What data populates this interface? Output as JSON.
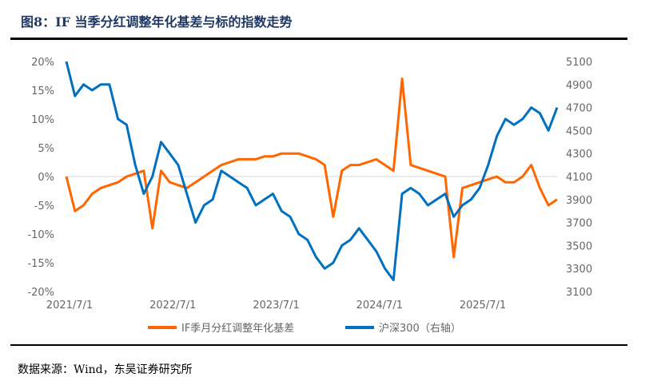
{
  "title": "图8：IF 当季分红调整年化基差与标的指数走势",
  "source": "数据来源：Wind，东吴证券研究所",
  "chart_data": {
    "type": "line",
    "title": "图8：IF 当季分红调整年化基差与标的指数走势",
    "x_tick_labels": [
      "2021/7/1",
      "2022/7/1",
      "2023/7/1",
      "2024/7/1",
      "2025/7/1"
    ],
    "y_left": {
      "range": [
        -20,
        20
      ],
      "unit": "%",
      "ticks": [
        "20%",
        "15%",
        "10%",
        "5%",
        "0%",
        "-5%",
        "-10%",
        "-15%",
        "-20%"
      ]
    },
    "y_right": {
      "range": [
        3100,
        5100
      ],
      "ticks": [
        "5100",
        "4900",
        "4700",
        "4500",
        "4300",
        "4100",
        "3900",
        "3700",
        "3500",
        "3300",
        "3100"
      ]
    },
    "grid": "zero-line only",
    "legend_position": "bottom",
    "dates": [
      "2021/7",
      "2021/8",
      "2021/9",
      "2021/10",
      "2021/11",
      "2021/12",
      "2022/1",
      "2022/2",
      "2022/3",
      "2022/4",
      "2022/5",
      "2022/6",
      "2022/7",
      "2022/8",
      "2022/9",
      "2022/10",
      "2022/11",
      "2022/12",
      "2023/1",
      "2023/2",
      "2023/3",
      "2023/4",
      "2023/5",
      "2023/6",
      "2023/7",
      "2023/8",
      "2023/9",
      "2023/10",
      "2023/11",
      "2023/12",
      "2024/1",
      "2024/2",
      "2024/3",
      "2024/4",
      "2024/5",
      "2024/6",
      "2024/7",
      "2024/8",
      "2024/9",
      "2024/10",
      "2024/11",
      "2024/12",
      "2025/1",
      "2025/2",
      "2025/3",
      "2025/4",
      "2025/5",
      "2025/6",
      "2025/7",
      "2025/8",
      "2025/9",
      "2025/10",
      "2025/11",
      "2025/12",
      "2026/1",
      "2026/2",
      "2026/3",
      "2026/4"
    ],
    "series": [
      {
        "name": "IF季月分红调整年化基差",
        "axis": "left",
        "color": "#ff6600",
        "values": [
          0,
          -6,
          -5,
          -3,
          -2,
          -1.5,
          -1,
          0,
          0.5,
          1,
          -9,
          1,
          -1,
          -1.5,
          -2,
          -1,
          0,
          1,
          2,
          2.5,
          3,
          3,
          3,
          3.5,
          3.5,
          4,
          4,
          4,
          3.5,
          3,
          2,
          -7,
          1,
          2,
          2,
          2.5,
          3,
          2,
          1,
          17,
          2,
          1.5,
          1,
          0.5,
          0,
          -14,
          -2,
          -1.5,
          -1,
          -0.5,
          0,
          -1,
          -1,
          0,
          2,
          -2,
          -5,
          -4
        ]
      },
      {
        "name": "沪深300（右轴）",
        "axis": "right",
        "color": "#0070c0",
        "values": [
          5100,
          4800,
          4900,
          4850,
          4900,
          4900,
          4600,
          4550,
          4200,
          3950,
          4100,
          4400,
          4300,
          4200,
          3950,
          3700,
          3850,
          3900,
          4150,
          4100,
          4050,
          4000,
          3850,
          3900,
          3950,
          3800,
          3750,
          3600,
          3550,
          3400,
          3300,
          3350,
          3500,
          3550,
          3650,
          3550,
          3450,
          3300,
          3200,
          3950,
          4000,
          3950,
          3850,
          3900,
          3950,
          3750,
          3850,
          3900,
          4000,
          4200,
          4450,
          4600,
          4550,
          4600,
          4700,
          4650,
          4500,
          4700
        ]
      }
    ]
  }
}
